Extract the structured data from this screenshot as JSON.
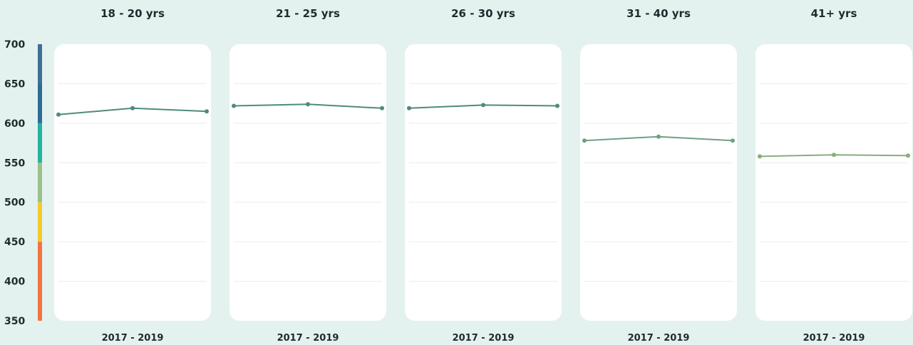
{
  "chart_data": {
    "type": "line",
    "ylim": [
      350,
      700
    ],
    "y_ticks": [
      "700",
      "650",
      "600",
      "550",
      "500",
      "450",
      "400",
      "350"
    ],
    "grid": true,
    "score_band_colors": [
      {
        "from": 650,
        "to": 700,
        "color": "#3d6f98"
      },
      {
        "from": 600,
        "to": 650,
        "color": "#2c6c93"
      },
      {
        "from": 550,
        "to": 600,
        "color": "#25b39c"
      },
      {
        "from": 500,
        "to": 550,
        "color": "#9bc08a"
      },
      {
        "from": 450,
        "to": 500,
        "color": "#f2cb2c"
      },
      {
        "from": 350,
        "to": 450,
        "color": "#f2743f"
      }
    ],
    "panels": [
      {
        "title": "18 - 20 yrs",
        "x_label": "2017 - 2019",
        "values": [
          611,
          619,
          615
        ],
        "color": "#4f8a7e"
      },
      {
        "title": "21 - 25 yrs",
        "x_label": "2017 - 2019",
        "values": [
          622,
          624,
          619
        ],
        "color": "#4f8a7e"
      },
      {
        "title": "26 - 30 yrs",
        "x_label": "2017 - 2019",
        "values": [
          619,
          623,
          622
        ],
        "color": "#4f8a7e"
      },
      {
        "title": "31 - 40 yrs",
        "x_label": "2017 - 2019",
        "values": [
          578,
          583,
          578
        ],
        "color": "#6fa084"
      },
      {
        "title": "41+ yrs",
        "x_label": "2017 - 2019",
        "values": [
          558,
          560,
          559
        ],
        "color": "#86ae7c"
      }
    ]
  }
}
